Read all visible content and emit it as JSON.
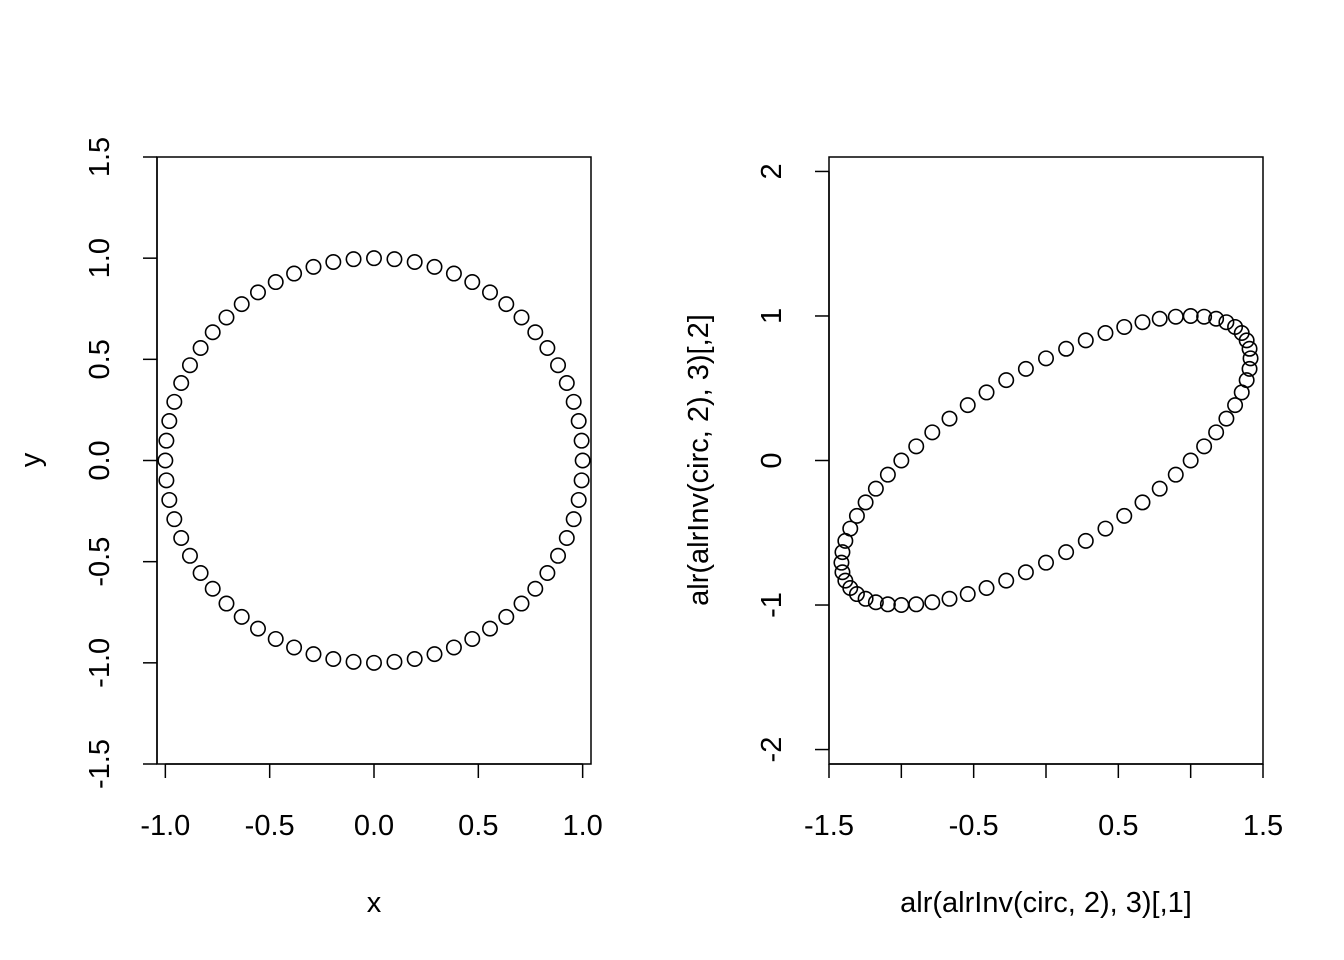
{
  "chart_data": [
    {
      "type": "scatter",
      "title": "",
      "xlabel": "x",
      "ylabel": "y",
      "xlim": [
        -1.04,
        1.04
      ],
      "ylim": [
        -1.5,
        1.5
      ],
      "xticks": [
        -1.0,
        -0.5,
        0.0,
        0.5,
        1.0
      ],
      "xtick_labels": [
        "-1.0",
        "-0.5",
        "0.0",
        "0.5",
        "1.0"
      ],
      "yticks": [
        -1.5,
        -1.0,
        -0.5,
        0.0,
        0.5,
        1.0,
        1.5
      ],
      "ytick_labels": [
        "-1.5",
        "-1.0",
        "-0.5",
        "0.0",
        "0.5",
        "1.0",
        "1.5"
      ],
      "grid": false,
      "point_count": 64,
      "points": [
        [
          1.0,
          0.0
        ],
        [
          0.995,
          0.098
        ],
        [
          0.981,
          0.195
        ],
        [
          0.957,
          0.29
        ],
        [
          0.924,
          0.383
        ],
        [
          0.882,
          0.471
        ],
        [
          0.831,
          0.556
        ],
        [
          0.773,
          0.634
        ],
        [
          0.707,
          0.707
        ],
        [
          0.634,
          0.773
        ],
        [
          0.556,
          0.831
        ],
        [
          0.471,
          0.882
        ],
        [
          0.383,
          0.924
        ],
        [
          0.29,
          0.957
        ],
        [
          0.195,
          0.981
        ],
        [
          0.098,
          0.995
        ],
        [
          0.0,
          1.0
        ],
        [
          -0.098,
          0.995
        ],
        [
          -0.195,
          0.981
        ],
        [
          -0.29,
          0.957
        ],
        [
          -0.383,
          0.924
        ],
        [
          -0.471,
          0.882
        ],
        [
          -0.556,
          0.831
        ],
        [
          -0.634,
          0.773
        ],
        [
          -0.707,
          0.707
        ],
        [
          -0.773,
          0.634
        ],
        [
          -0.831,
          0.556
        ],
        [
          -0.882,
          0.471
        ],
        [
          -0.924,
          0.383
        ],
        [
          -0.957,
          0.29
        ],
        [
          -0.981,
          0.195
        ],
        [
          -0.995,
          0.098
        ],
        [
          -1.0,
          0.0
        ],
        [
          -0.995,
          -0.098
        ],
        [
          -0.981,
          -0.195
        ],
        [
          -0.957,
          -0.29
        ],
        [
          -0.924,
          -0.383
        ],
        [
          -0.882,
          -0.471
        ],
        [
          -0.831,
          -0.556
        ],
        [
          -0.773,
          -0.634
        ],
        [
          -0.707,
          -0.707
        ],
        [
          -0.634,
          -0.773
        ],
        [
          -0.556,
          -0.831
        ],
        [
          -0.471,
          -0.882
        ],
        [
          -0.383,
          -0.924
        ],
        [
          -0.29,
          -0.957
        ],
        [
          -0.195,
          -0.981
        ],
        [
          -0.098,
          -0.995
        ],
        [
          0.0,
          -1.0
        ],
        [
          0.098,
          -0.995
        ],
        [
          0.195,
          -0.981
        ],
        [
          0.29,
          -0.957
        ],
        [
          0.383,
          -0.924
        ],
        [
          0.471,
          -0.882
        ],
        [
          0.556,
          -0.831
        ],
        [
          0.634,
          -0.773
        ],
        [
          0.707,
          -0.707
        ],
        [
          0.773,
          -0.634
        ],
        [
          0.831,
          -0.556
        ],
        [
          0.882,
          -0.471
        ],
        [
          0.924,
          -0.383
        ],
        [
          0.957,
          -0.29
        ],
        [
          0.981,
          -0.195
        ],
        [
          0.995,
          -0.098
        ]
      ]
    },
    {
      "type": "scatter",
      "title": "",
      "xlabel": "alr(alrInv(circ, 2), 3)[,1]",
      "ylabel": "alr(alrInv(circ, 2), 3)[,2]",
      "xlim": [
        -1.5,
        1.5
      ],
      "ylim": [
        -2.1,
        2.1
      ],
      "xticks": [
        -1.5,
        -1.0,
        -0.5,
        0.0,
        0.5,
        1.0,
        1.5
      ],
      "xtick_labels": [
        "-1.5",
        "",
        "-0.5",
        "",
        "0.5",
        "",
        "1.5"
      ],
      "yticks": [
        -2,
        -1,
        0,
        1,
        2
      ],
      "ytick_labels": [
        "-2",
        "-1",
        "0",
        "1",
        "2"
      ],
      "grid": false,
      "point_count": 64,
      "points": [
        [
          1.0,
          0.0
        ],
        [
          1.093,
          0.098
        ],
        [
          1.176,
          0.195
        ],
        [
          1.247,
          0.29
        ],
        [
          1.307,
          0.383
        ],
        [
          1.353,
          0.471
        ],
        [
          1.387,
          0.556
        ],
        [
          1.407,
          0.634
        ],
        [
          1.414,
          0.707
        ],
        [
          1.407,
          0.773
        ],
        [
          1.387,
          0.831
        ],
        [
          1.353,
          0.882
        ],
        [
          1.307,
          0.924
        ],
        [
          1.247,
          0.957
        ],
        [
          1.176,
          0.981
        ],
        [
          1.093,
          0.995
        ],
        [
          1.0,
          1.0
        ],
        [
          0.897,
          0.995
        ],
        [
          0.786,
          0.981
        ],
        [
          0.667,
          0.957
        ],
        [
          0.541,
          0.924
        ],
        [
          0.411,
          0.882
        ],
        [
          0.275,
          0.831
        ],
        [
          0.139,
          0.773
        ],
        [
          0.0,
          0.707
        ],
        [
          -0.139,
          0.634
        ],
        [
          -0.275,
          0.556
        ],
        [
          -0.411,
          0.471
        ],
        [
          -0.541,
          0.383
        ],
        [
          -0.667,
          0.29
        ],
        [
          -0.786,
          0.195
        ],
        [
          -0.897,
          0.098
        ],
        [
          -1.0,
          0.0
        ],
        [
          -1.093,
          -0.098
        ],
        [
          -1.176,
          -0.195
        ],
        [
          -1.247,
          -0.29
        ],
        [
          -1.307,
          -0.383
        ],
        [
          -1.353,
          -0.471
        ],
        [
          -1.387,
          -0.556
        ],
        [
          -1.407,
          -0.634
        ],
        [
          -1.414,
          -0.707
        ],
        [
          -1.407,
          -0.773
        ],
        [
          -1.387,
          -0.831
        ],
        [
          -1.353,
          -0.882
        ],
        [
          -1.307,
          -0.924
        ],
        [
          -1.247,
          -0.957
        ],
        [
          -1.176,
          -0.981
        ],
        [
          -1.093,
          -0.995
        ],
        [
          -1.0,
          -1.0
        ],
        [
          -0.897,
          -0.995
        ],
        [
          -0.786,
          -0.981
        ],
        [
          -0.667,
          -0.957
        ],
        [
          -0.541,
          -0.924
        ],
        [
          -0.411,
          -0.882
        ],
        [
          -0.275,
          -0.831
        ],
        [
          -0.139,
          -0.773
        ],
        [
          0.0,
          -0.707
        ],
        [
          0.139,
          -0.634
        ],
        [
          0.275,
          -0.556
        ],
        [
          0.411,
          -0.471
        ],
        [
          0.541,
          -0.383
        ],
        [
          0.667,
          -0.29
        ],
        [
          0.786,
          -0.195
        ],
        [
          0.897,
          -0.098
        ]
      ]
    }
  ]
}
